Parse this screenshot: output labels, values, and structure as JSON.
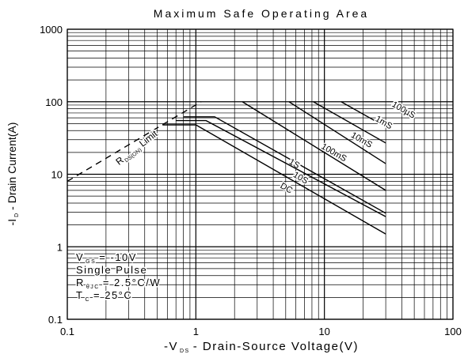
{
  "chart_data": {
    "type": "line",
    "title": "Maximum Safe Operating Area",
    "x_label": {
      "main": "-V",
      "sub": "DS",
      "rest": "- Drain-Source Voltage(V)"
    },
    "y_label": {
      "main": "-I",
      "sub": "D",
      "rest": "- Drain Current(A)"
    },
    "log_x": true,
    "log_y": true,
    "grid": true,
    "xlim": [
      0.1,
      100
    ],
    "xticks": [
      0.1,
      1,
      10,
      100
    ],
    "ylim": [
      0.1,
      1000
    ],
    "yticks": [
      0.1,
      1,
      10,
      100,
      1000
    ],
    "series": [
      {
        "name_parts": [
          "R",
          "DS(ON)",
          "Limit"
        ],
        "color": "#000000",
        "dashed": true,
        "x": [
          0.1,
          1.1
        ],
        "values": [
          8,
          100
        ]
      },
      {
        "name": "100µS",
        "color": "#000000",
        "x": [
          13.5,
          30
        ],
        "values": [
          100,
          45
        ]
      },
      {
        "name": "1mS",
        "color": "#000000",
        "x": [
          8.2,
          30
        ],
        "values": [
          100,
          27
        ]
      },
      {
        "name": "10mS",
        "color": "#000000",
        "x": [
          5.3,
          30
        ],
        "values": [
          100,
          14
        ]
      },
      {
        "name": "100mS",
        "color": "#000000",
        "x": [
          2.3,
          30
        ],
        "values": [
          100,
          6
        ]
      },
      {
        "name": "1S",
        "color": "#000000",
        "x": [
          0.8,
          1.4,
          30
        ],
        "values": [
          62,
          62,
          2.9
        ]
      },
      {
        "name": "10S",
        "color": "#000000",
        "x": [
          0.7,
          1.2,
          30
        ],
        "values": [
          55,
          55,
          2.6
        ]
      },
      {
        "name": "DC",
        "color": "#000000",
        "x": [
          0.55,
          1.0,
          30
        ],
        "values": [
          48,
          48,
          1.5
        ]
      }
    ],
    "annotation": [
      {
        "main": "V",
        "sub": "GS",
        "rest": "= -10V"
      },
      {
        "main": "Single Pulse"
      },
      {
        "main": "R",
        "sub": "θJC",
        "rest": "= 2.5°C/W"
      },
      {
        "main": "T",
        "sub": "C",
        "rest": "= 25°C"
      }
    ]
  }
}
